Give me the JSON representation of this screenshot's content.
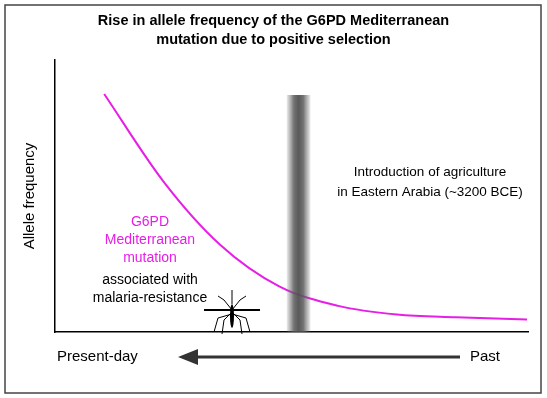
{
  "chart_data": {
    "type": "line",
    "title": [
      "Rise in allele frequency of the G6PD Mediterranean",
      "mutation due to positive selection"
    ],
    "ylabel": "Allele frequency",
    "xlabel_start": "Present-day",
    "xlabel_end": "Past",
    "x": [
      1.04,
      2.29,
      3.49,
      4.74,
      5.99,
      7.23,
      8.48,
      9.98
    ],
    "values": [
      0.875,
      0.554,
      0.321,
      0.168,
      0.096,
      0.064,
      0.054,
      0.046
    ],
    "color": "#e61ee6",
    "xlim": [
      0,
      10
    ],
    "ylim": [
      0,
      1
    ],
    "tick_labels": false,
    "grid": false,
    "annotations": [
      {
        "text": [
          "G6PD",
          "Mediterranean",
          "mutation"
        ],
        "color": "#e61ee6"
      },
      {
        "text": [
          "associated with",
          "malaria-resistance"
        ],
        "color": "#000000"
      },
      {
        "text": [
          "Introduction of agriculture",
          "in Eastern Arabia (~3200 BCE)"
        ],
        "color": "#000000",
        "band_x": [
          4.9,
          5.4
        ]
      }
    ]
  }
}
